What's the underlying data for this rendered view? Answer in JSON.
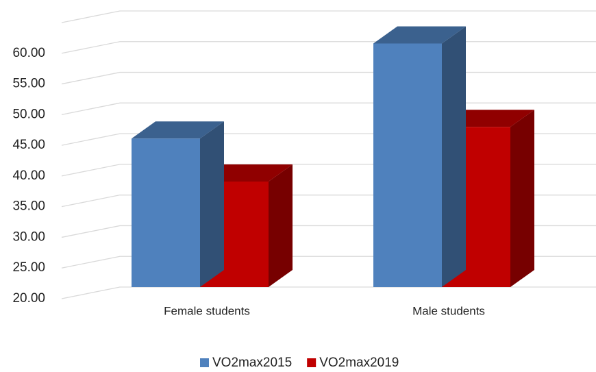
{
  "chart_data": {
    "type": "bar3d",
    "categories": [
      "Female students",
      "Male students"
    ],
    "series": [
      {
        "name": "VO2max2015",
        "color": "#4f81bd",
        "values": [
          44.2,
          59.7
        ]
      },
      {
        "name": "VO2max2019",
        "color": "#c00000",
        "values": [
          37.2,
          46.1
        ]
      }
    ],
    "ylim": [
      20,
      65
    ],
    "yticks": [
      {
        "value": 20,
        "label": "20.00"
      },
      {
        "value": 25,
        "label": "25.00"
      },
      {
        "value": 30,
        "label": "30.00"
      },
      {
        "value": 35,
        "label": "35.00"
      },
      {
        "value": 40,
        "label": "40.00"
      },
      {
        "value": 45,
        "label": "45.00"
      },
      {
        "value": 50,
        "label": "50.00"
      },
      {
        "value": 55,
        "label": "55.00"
      },
      {
        "value": 60,
        "label": "60.00"
      }
    ],
    "grid": true,
    "legend": "bottom"
  }
}
